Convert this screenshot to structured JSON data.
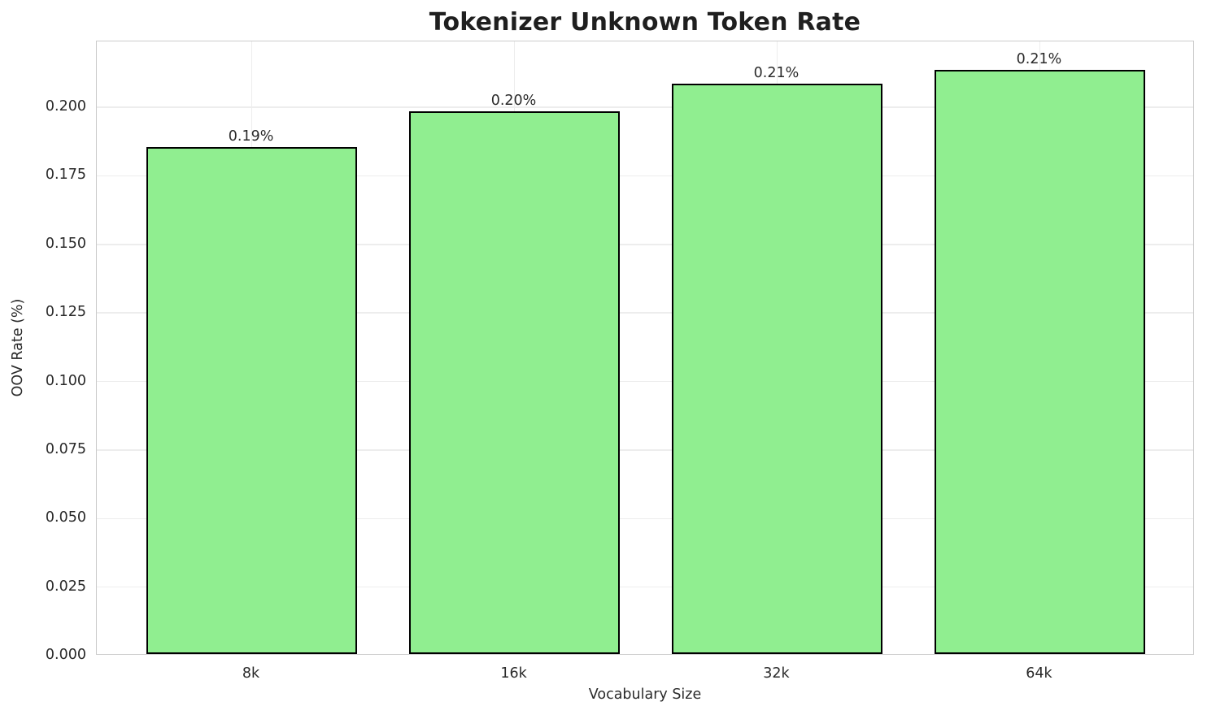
{
  "chart_data": {
    "type": "bar",
    "title": "Tokenizer Unknown Token Rate",
    "xlabel": "Vocabulary Size",
    "ylabel": "OOV Rate (%)",
    "categories": [
      "8k",
      "16k",
      "32k",
      "64k"
    ],
    "values": [
      0.185,
      0.198,
      0.208,
      0.213
    ],
    "bar_labels": [
      "0.19%",
      "0.20%",
      "0.21%",
      "0.21%"
    ],
    "ytick_labels": [
      "0.000",
      "0.025",
      "0.050",
      "0.075",
      "0.100",
      "0.125",
      "0.150",
      "0.175",
      "0.200"
    ],
    "ylim": [
      0.0,
      0.224
    ],
    "grid": true,
    "legend": "none",
    "bar_fill_color": "#90EE90",
    "bar_edge_color": "#000000",
    "grid_color": "#ededed",
    "spine_color": "#cccccc",
    "background_color": "#ffffff"
  }
}
